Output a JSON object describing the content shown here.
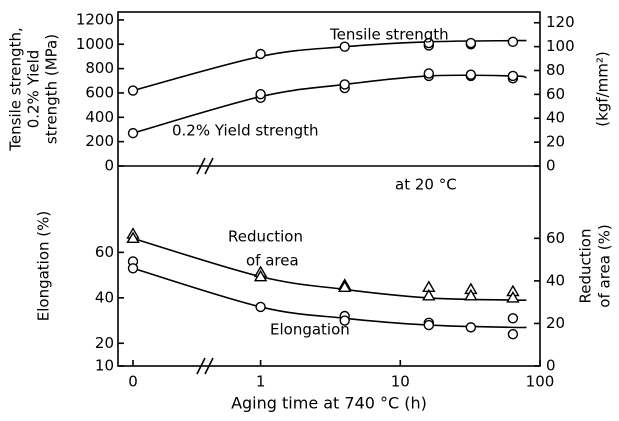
{
  "chart_data": [
    {
      "type": "scatter",
      "ylabel": [
        "Tensile strength,",
        "0.2% Yield",
        "strength (MPa)"
      ],
      "y2label": "(kgf/mm²)",
      "annotations": [
        "at 20 °C"
      ],
      "xscale": "log",
      "axis_break": true,
      "xlim": [
        0.4,
        100
      ],
      "ylim": [
        0,
        1265
      ],
      "yticks": [
        0,
        200,
        400,
        600,
        800,
        1000,
        1200
      ],
      "y2lim": [
        0,
        129
      ],
      "y2ticks": [
        0,
        20,
        40,
        60,
        80,
        100,
        120
      ],
      "series": [
        {
          "label": [
            "Tensile strength"
          ],
          "marker": "circle",
          "color": "#000000",
          "x": [
            0,
            1,
            4,
            16,
            16,
            32,
            32,
            64
          ],
          "values": [
            620,
            920,
            980,
            990,
            1010,
            1000,
            1010,
            1020
          ],
          "fit_x": [
            0,
            1,
            4,
            16,
            64,
            80
          ],
          "fit_values": [
            620,
            900,
            980,
            1020,
            1030,
            1030
          ]
        },
        {
          "label": [
            "0.2% Yield strength"
          ],
          "marker": "circle",
          "color": "#000000",
          "x": [
            0,
            1,
            1,
            4,
            4,
            16,
            16,
            32,
            32,
            64,
            64
          ],
          "values": [
            270,
            560,
            590,
            640,
            670,
            740,
            760,
            740,
            750,
            720,
            740
          ],
          "fit_x": [
            0,
            1,
            4,
            16,
            64,
            80
          ],
          "fit_values": [
            270,
            570,
            670,
            740,
            740,
            725
          ]
        }
      ]
    },
    {
      "type": "scatter",
      "ylabel": "Elongation (%)",
      "y2label": [
        "Reduction",
        "of area (%)"
      ],
      "xlabel": "Aging time at 740 °C (h)",
      "xscale": "log",
      "axis_break": true,
      "xlim": [
        0.4,
        100
      ],
      "xticks": [
        0,
        1,
        10,
        100
      ],
      "ylim": [
        10,
        98
      ],
      "yticks": [
        10,
        20,
        40,
        60
      ],
      "y2lim": [
        0,
        94
      ],
      "y2ticks": [
        0,
        20,
        40,
        60
      ],
      "series": [
        {
          "label": [
            "Reduction",
            "of area"
          ],
          "marker": "triangle",
          "color": "#000000",
          "axis": "y2",
          "x": [
            0,
            0,
            1,
            1,
            4,
            4,
            16,
            16,
            32,
            32,
            64,
            64
          ],
          "values": [
            62,
            60,
            44,
            42,
            38,
            37,
            37,
            33,
            36,
            33,
            35,
            32
          ],
          "fit_x": [
            0,
            1,
            4,
            16,
            64,
            80
          ],
          "fit_values": [
            60,
            42,
            36,
            32,
            31,
            31
          ]
        },
        {
          "label": [
            "Elongation"
          ],
          "marker": "circle",
          "color": "#000000",
          "x": [
            0,
            0,
            1,
            4,
            4,
            16,
            16,
            32,
            64,
            64
          ],
          "values": [
            56,
            53,
            36,
            32,
            30,
            29,
            28,
            27,
            31,
            24
          ],
          "fit_x": [
            0,
            1,
            4,
            16,
            64,
            80
          ],
          "fit_values": [
            53,
            36,
            31,
            28,
            27,
            27
          ]
        }
      ]
    }
  ]
}
